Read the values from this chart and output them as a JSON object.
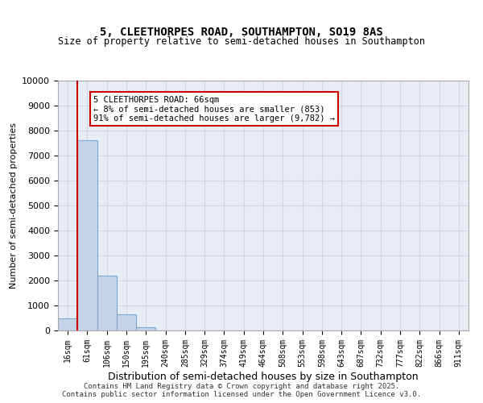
{
  "title": "5, CLEETHORPES ROAD, SOUTHAMPTON, SO19 8AS",
  "subtitle": "Size of property relative to semi-detached houses in Southampton",
  "xlabel": "Distribution of semi-detached houses by size in Southampton",
  "ylabel": "Number of semi-detached properties",
  "bins": [
    "16sqm",
    "61sqm",
    "106sqm",
    "150sqm",
    "195sqm",
    "240sqm",
    "285sqm",
    "329sqm",
    "374sqm",
    "419sqm",
    "464sqm",
    "508sqm",
    "553sqm",
    "598sqm",
    "643sqm",
    "687sqm",
    "732sqm",
    "777sqm",
    "822sqm",
    "866sqm",
    "911sqm"
  ],
  "values": [
    500,
    7600,
    2200,
    650,
    130,
    0,
    0,
    0,
    0,
    0,
    0,
    0,
    0,
    0,
    0,
    0,
    0,
    0,
    0,
    0,
    0
  ],
  "bar_color": "#c5d4e8",
  "bar_edge_color": "#7fa8d0",
  "grid_color": "#d0d8e8",
  "background_color": "#e8edf5",
  "property_line_x": 1,
  "annotation_text": "5 CLEETHORPES ROAD: 66sqm\n← 8% of semi-detached houses are smaller (853)\n91% of semi-detached houses are larger (9,782) →",
  "annotation_box_color": "#ffffff",
  "annotation_box_edge": "#cc0000",
  "line_color": "#cc0000",
  "ylim": [
    0,
    10000
  ],
  "yticks": [
    0,
    1000,
    2000,
    3000,
    4000,
    5000,
    6000,
    7000,
    8000,
    9000,
    10000
  ],
  "footer_line1": "Contains HM Land Registry data © Crown copyright and database right 2025.",
  "footer_line2": "Contains public sector information licensed under the Open Government Licence v3.0."
}
